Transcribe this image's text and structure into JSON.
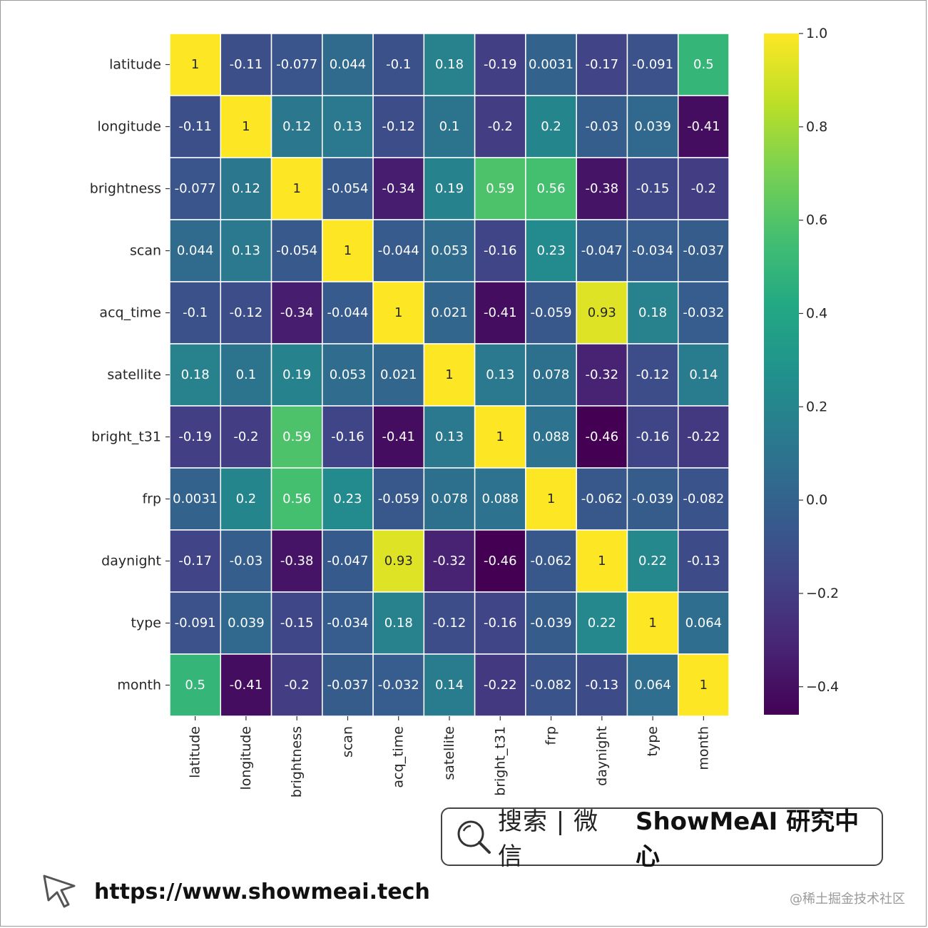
{
  "chart_data": {
    "type": "heatmap",
    "labels": [
      "latitude",
      "longitude",
      "brightness",
      "scan",
      "acq_time",
      "satellite",
      "bright_t31",
      "frp",
      "daynight",
      "type",
      "month"
    ],
    "values": [
      [
        1,
        -0.11,
        -0.077,
        0.044,
        -0.1,
        0.18,
        -0.19,
        0.0031,
        -0.17,
        -0.091,
        0.5
      ],
      [
        -0.11,
        1,
        0.12,
        0.13,
        -0.12,
        0.1,
        -0.2,
        0.2,
        -0.03,
        0.039,
        -0.41
      ],
      [
        -0.077,
        0.12,
        1,
        -0.054,
        -0.34,
        0.19,
        0.59,
        0.56,
        -0.38,
        -0.15,
        -0.2
      ],
      [
        0.044,
        0.13,
        -0.054,
        1,
        -0.044,
        0.053,
        -0.16,
        0.23,
        -0.047,
        -0.034,
        -0.037
      ],
      [
        -0.1,
        -0.12,
        -0.34,
        -0.044,
        1,
        0.021,
        -0.41,
        -0.059,
        0.93,
        0.18,
        -0.032
      ],
      [
        0.18,
        0.1,
        0.19,
        0.053,
        0.021,
        1,
        0.13,
        0.078,
        -0.32,
        -0.12,
        0.14
      ],
      [
        -0.19,
        -0.2,
        0.59,
        -0.16,
        -0.41,
        0.13,
        1,
        0.088,
        -0.46,
        -0.16,
        -0.22
      ],
      [
        0.0031,
        0.2,
        0.56,
        0.23,
        -0.059,
        0.078,
        0.088,
        1,
        -0.062,
        -0.039,
        -0.082
      ],
      [
        -0.17,
        -0.03,
        -0.38,
        -0.047,
        0.93,
        -0.32,
        -0.46,
        -0.062,
        1,
        0.22,
        -0.13
      ],
      [
        -0.091,
        0.039,
        -0.15,
        -0.034,
        0.18,
        -0.12,
        -0.16,
        -0.039,
        0.22,
        1,
        0.064
      ],
      [
        0.5,
        -0.41,
        -0.2,
        -0.037,
        -0.032,
        0.14,
        -0.22,
        -0.082,
        -0.13,
        0.064,
        1
      ]
    ],
    "display": [
      [
        "1",
        "-0.11",
        "-0.077",
        "0.044",
        "-0.1",
        "0.18",
        "-0.19",
        "0.0031",
        "-0.17",
        "-0.091",
        "0.5"
      ],
      [
        "-0.11",
        "1",
        "0.12",
        "0.13",
        "-0.12",
        "0.1",
        "-0.2",
        "0.2",
        "-0.03",
        "0.039",
        "-0.41"
      ],
      [
        "-0.077",
        "0.12",
        "1",
        "-0.054",
        "-0.34",
        "0.19",
        "0.59",
        "0.56",
        "-0.38",
        "-0.15",
        "-0.2"
      ],
      [
        "0.044",
        "0.13",
        "-0.054",
        "1",
        "-0.044",
        "0.053",
        "-0.16",
        "0.23",
        "-0.047",
        "-0.034",
        "-0.037"
      ],
      [
        "-0.1",
        "-0.12",
        "-0.34",
        "-0.044",
        "1",
        "0.021",
        "-0.41",
        "-0.059",
        "0.93",
        "0.18",
        "-0.032"
      ],
      [
        "0.18",
        "0.1",
        "0.19",
        "0.053",
        "0.021",
        "1",
        "0.13",
        "0.078",
        "-0.32",
        "-0.12",
        "0.14"
      ],
      [
        "-0.19",
        "-0.2",
        "0.59",
        "-0.16",
        "-0.41",
        "0.13",
        "1",
        "0.088",
        "-0.46",
        "-0.16",
        "-0.22"
      ],
      [
        "0.0031",
        "0.2",
        "0.56",
        "0.23",
        "-0.059",
        "0.078",
        "0.088",
        "1",
        "-0.062",
        "-0.039",
        "-0.082"
      ],
      [
        "-0.17",
        "-0.03",
        "-0.38",
        "-0.047",
        "0.93",
        "-0.32",
        "-0.46",
        "-0.062",
        "1",
        "0.22",
        "-0.13"
      ],
      [
        "-0.091",
        "0.039",
        "-0.15",
        "-0.034",
        "0.18",
        "-0.12",
        "-0.16",
        "-0.039",
        "0.22",
        "1",
        "0.064"
      ],
      [
        "0.5",
        "-0.41",
        "-0.2",
        "-0.037",
        "-0.032",
        "0.14",
        "-0.22",
        "-0.082",
        "-0.13",
        "0.064",
        "1"
      ]
    ],
    "colormap": "viridis",
    "vmin": -0.46,
    "vmax": 1.0,
    "colorbar_ticks": [
      {
        "value": 1.0,
        "label": "1.0"
      },
      {
        "value": 0.8,
        "label": "0.8"
      },
      {
        "value": 0.6,
        "label": "0.6"
      },
      {
        "value": 0.4,
        "label": "0.4"
      },
      {
        "value": 0.2,
        "label": "0.2"
      },
      {
        "value": 0.0,
        "label": "0.0"
      },
      {
        "value": -0.2,
        "label": "−0.2"
      },
      {
        "value": -0.4,
        "label": "−0.4"
      }
    ],
    "grid_line_color": "#ffffff"
  },
  "footer": {
    "search_text": "搜索 | 微信",
    "brand_text": "ShowMeAI 研究中心",
    "url": "https://www.showmeai.tech",
    "watermark": "@稀土掘金技术社区",
    "search_icon": "magnifier-icon",
    "cursor_icon": "pointer-cursor-icon"
  }
}
